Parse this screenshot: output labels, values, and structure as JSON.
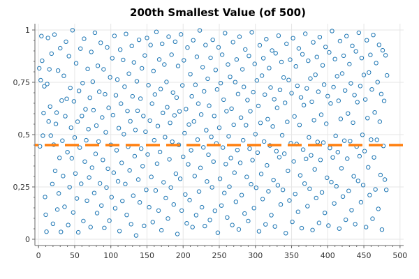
{
  "chart_data": {
    "type": "scatter",
    "title": "200th Smallest Value (of 500)",
    "xlabel": "",
    "ylabel": "",
    "xlim": [
      -5,
      505
    ],
    "ylim": [
      -0.03,
      1.03
    ],
    "x_ticks": [
      0,
      50,
      100,
      150,
      200,
      250,
      300,
      350,
      400,
      450,
      500
    ],
    "x_tick_labels": [
      "0",
      "50",
      "100",
      "150",
      "200",
      "250",
      "300",
      "350",
      "400",
      "450",
      "500"
    ],
    "y_ticks": [
      0,
      0.25,
      0.5,
      0.75,
      1
    ],
    "y_tick_labels": [
      "0",
      "0,25",
      "0,5",
      "0,75",
      "1"
    ],
    "grid": true,
    "series": [
      {
        "color": "#1f77b4",
        "marker": "circle-open",
        "x_start": 1,
        "x_step": 1,
        "values": [
          0.817,
          0.444,
          0.76,
          0.971,
          0.853,
          0.495,
          0.603,
          0.731,
          0.202,
          0.117,
          0.036,
          0.742,
          0.962,
          0.563,
          0.812,
          0.634,
          0.495,
          0.887,
          0.264,
          0.074,
          0.452,
          0.978,
          0.327,
          0.551,
          0.605,
          0.142,
          0.806,
          0.219,
          0.389,
          0.913,
          0.035,
          0.663,
          0.471,
          0.302,
          0.781,
          0.155,
          0.588,
          0.944,
          0.671,
          0.416,
          0.068,
          0.875,
          0.249,
          0.723,
          0.533,
          0.387,
          0.999,
          0.128,
          0.659,
          0.486,
          0.314,
          0.841,
          0.195,
          0.562,
          0.033,
          0.709,
          0.438,
          0.911,
          0.265,
          0.589,
          0.746,
          0.087,
          0.958,
          0.371,
          0.621,
          0.473,
          0.184,
          0.814,
          0.526,
          0.295,
          0.676,
          0.058,
          0.895,
          0.342,
          0.753,
          0.617,
          0.221,
          0.987,
          0.408,
          0.543,
          0.125,
          0.829,
          0.467,
          0.705,
          0.267,
          0.939,
          0.161,
          0.582,
          0.379,
          0.812,
          0.054,
          0.693,
          0.511,
          0.247,
          0.917,
          0.337,
          0.628,
          0.089,
          0.774,
          0.451,
          0.201,
          0.865,
          0.593,
          0.318,
          0.972,
          0.148,
          0.688,
          0.425,
          0.763,
          0.277,
          0.531,
          0.039,
          0.906,
          0.648,
          0.365,
          0.183,
          0.857,
          0.502,
          0.729,
          0.264,
          0.981,
          0.116,
          0.613,
          0.442,
          0.791,
          0.329,
          0.564,
          0.072,
          0.924,
          0.683,
          0.208,
          0.845,
          0.397,
          0.522,
          0.018,
          0.755,
          0.614,
          0.285,
          0.953,
          0.176,
          0.672,
          0.433,
          0.817,
          0.349,
          0.589,
          0.064,
          0.878,
          0.514,
          0.236,
          0.962,
          0.405,
          0.736,
          0.153,
          0.567,
          0.928,
          0.298,
          0.648,
          0.082,
          0.804,
          0.473,
          0.692,
          0.233,
          0.991,
          0.361,
          0.541,
          0.137,
          0.859,
          0.417,
          0.718,
          0.043,
          0.934,
          0.604,
          0.272,
          0.835,
          0.488,
          0.197,
          0.752,
          0.631,
          0.099,
          0.968,
          0.382,
          0.556,
          0.247,
          0.882,
          0.466,
          0.701,
          0.166,
          0.592,
          0.944,
          0.313,
          0.677,
          0.025,
          0.828,
          0.451,
          0.611,
          0.289,
          0.979,
          0.137,
          0.735,
          0.394,
          0.855,
          0.507,
          0.214,
          0.622,
          0.076,
          0.916,
          0.358,
          0.548,
          0.187,
          0.789,
          0.425,
          0.683,
          0.058,
          0.951,
          0.563,
          0.302,
          0.738,
          0.115,
          0.872,
          0.476,
          0.648,
          0.228,
          0.998,
          0.341,
          0.596,
          0.153,
          0.822,
          0.439,
          0.707,
          0.063,
          0.928,
          0.521,
          0.276,
          0.767,
          0.404,
          0.638,
          0.092,
          0.867,
          0.489,
          0.248,
          0.953,
          0.371,
          0.589,
          0.136,
          0.809,
          0.458,
          0.716,
          0.031,
          0.917,
          0.533,
          0.289,
          0.746,
          0.161,
          0.882,
          0.438,
          0.667,
          0.221,
          0.985,
          0.359,
          0.612,
          0.104,
          0.835,
          0.492,
          0.251,
          0.776,
          0.388,
          0.624,
          0.068,
          0.942,
          0.547,
          0.318,
          0.751,
          0.179,
          0.859,
          0.426,
          0.694,
          0.047,
          0.968,
          0.365,
          0.581,
          0.211,
          0.812,
          0.473,
          0.728,
          0.123,
          0.907,
          0.545,
          0.298,
          0.665,
          0.087,
          0.876,
          0.433,
          0.612,
          0.263,
          0.989,
          0.378,
          0.703,
          0.149,
          0.838,
          0.502,
          0.246,
          0.759,
          0.414,
          0.637,
          0.038,
          0.927,
          0.556,
          0.312,
          0.782,
          0.192,
          0.865,
          0.467,
          0.691,
          0.071,
          0.956,
          0.353,
          0.574,
          0.229,
          0.818,
          0.448,
          0.725,
          0.115,
          0.902,
          0.539,
          0.283,
          0.669,
          0.061,
          0.889,
          0.421,
          0.628,
          0.258,
          0.973,
          0.392,
          0.714,
          0.166,
          0.847,
          0.497,
          0.236,
          0.773,
          0.409,
          0.652,
          0.029,
          0.934,
          0.561,
          0.327,
          0.761,
          0.185,
          0.858,
          0.459,
          0.698,
          0.083,
          0.961,
          0.372,
          0.587,
          0.216,
          0.826,
          0.455,
          0.733,
          0.131,
          0.912,
          0.546,
          0.305,
          0.678,
          0.053,
          0.884,
          0.428,
          0.641,
          0.266,
          0.982,
          0.384,
          0.721,
          0.158,
          0.853,
          0.487,
          0.241,
          0.768,
          0.401,
          0.657,
          0.044,
          0.941,
          0.569,
          0.334,
          0.786,
          0.197,
          0.871,
          0.465,
          0.705,
          0.078,
          0.966,
          0.379,
          0.595,
          0.224,
          0.831,
          0.462,
          0.739,
          0.126,
          0.919,
          0.552,
          0.294,
          0.684,
          0.065,
          0.893,
          0.436,
          0.649,
          0.273,
          0.995,
          0.391,
          0.727,
          0.171,
          0.861,
          0.494,
          0.253,
          0.779,
          0.416,
          0.662,
          0.051,
          0.947,
          0.575,
          0.339,
          0.792,
          0.204,
          0.877,
          0.471,
          0.711,
          0.093,
          0.971,
          0.385,
          0.601,
          0.231,
          0.837,
          0.469,
          0.745,
          0.139,
          0.924,
          0.557,
          0.301,
          0.689,
          0.072,
          0.898,
          0.443,
          0.655,
          0.279,
          0.987,
          0.397,
          0.732,
          0.177,
          0.866,
          0.499,
          0.259,
          0.785,
          0.421,
          0.668,
          0.058,
          0.951,
          0.579,
          0.344,
          0.797,
          0.211,
          0.881,
          0.476,
          0.716,
          0.098,
          0.976,
          0.391,
          0.606,
          0.238,
          0.842,
          0.475,
          0.751,
          0.145,
          0.929,
          0.562,
          0.307,
          0.694,
          0.046,
          0.903,
          0.446,
          0.661,
          0.285,
          0.879,
          0.236,
          0.783
        ]
      }
    ],
    "reference_line": {
      "y": 0.45,
      "color": "#ff7f0e",
      "style": "dashed"
    }
  }
}
